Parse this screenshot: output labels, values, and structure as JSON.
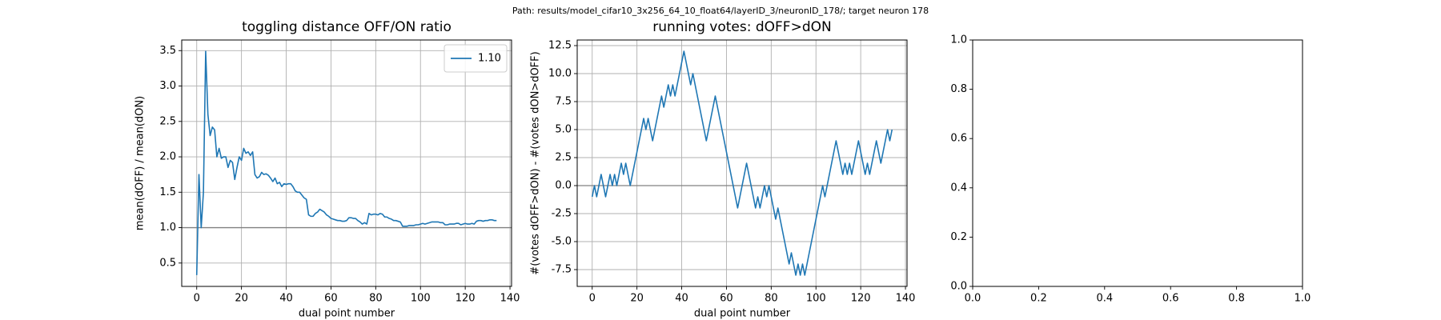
{
  "suptitle": "Path: results/model_cifar10_3x256_64_10_float64/layerID_3/neuronID_178/; target neuron 178",
  "chart_data": [
    {
      "type": "line",
      "title": "toggling distance OFF/ON ratio",
      "xlabel": "dual point number",
      "ylabel": "mean(dOFF) / mean(dON)",
      "x": [
        0,
        1,
        2,
        3,
        4,
        5,
        6,
        7,
        8,
        9,
        10,
        11,
        12,
        13,
        14,
        15,
        16,
        17,
        18,
        19,
        20,
        21,
        22,
        23,
        24,
        25,
        26,
        27,
        28,
        29,
        30,
        31,
        32,
        33,
        34,
        35,
        36,
        37,
        38,
        39,
        40,
        41,
        42,
        43,
        44,
        45,
        46,
        47,
        48,
        49,
        50,
        51,
        52,
        53,
        54,
        55,
        56,
        57,
        58,
        59,
        60,
        61,
        62,
        63,
        64,
        65,
        66,
        67,
        68,
        69,
        70,
        71,
        72,
        73,
        74,
        75,
        76,
        77,
        78,
        79,
        80,
        81,
        82,
        83,
        84,
        85,
        86,
        87,
        88,
        89,
        90,
        91,
        92,
        93,
        94,
        95,
        96,
        97,
        98,
        99,
        100,
        101,
        102,
        103,
        104,
        105,
        106,
        107,
        108,
        109,
        110,
        111,
        112,
        113,
        114,
        115,
        116,
        117,
        118,
        119,
        120,
        121,
        122,
        123,
        124,
        125,
        126,
        127,
        128,
        129,
        130,
        131,
        132,
        133,
        134
      ],
      "series": [
        {
          "name": "1.10",
          "color": "#1f77b4",
          "values": [
            0.33,
            1.75,
            1.0,
            1.5,
            3.49,
            2.6,
            2.3,
            2.42,
            2.38,
            2.0,
            2.12,
            1.98,
            2.0,
            2.0,
            1.85,
            1.95,
            1.92,
            1.68,
            1.85,
            2.0,
            1.95,
            2.12,
            2.05,
            2.07,
            2.02,
            2.07,
            1.75,
            1.7,
            1.72,
            1.78,
            1.75,
            1.76,
            1.74,
            1.7,
            1.65,
            1.7,
            1.62,
            1.64,
            1.58,
            1.62,
            1.61,
            1.62,
            1.62,
            1.58,
            1.52,
            1.5,
            1.5,
            1.46,
            1.42,
            1.4,
            1.18,
            1.16,
            1.16,
            1.2,
            1.22,
            1.26,
            1.24,
            1.22,
            1.18,
            1.16,
            1.13,
            1.12,
            1.11,
            1.1,
            1.1,
            1.09,
            1.09,
            1.1,
            1.14,
            1.14,
            1.13,
            1.13,
            1.1,
            1.08,
            1.05,
            1.07,
            1.05,
            1.2,
            1.18,
            1.19,
            1.19,
            1.18,
            1.2,
            1.19,
            1.15,
            1.15,
            1.13,
            1.12,
            1.1,
            1.1,
            1.09,
            1.08,
            1.02,
            1.02,
            1.02,
            1.03,
            1.03,
            1.03,
            1.04,
            1.04,
            1.05,
            1.06,
            1.05,
            1.06,
            1.07,
            1.08,
            1.08,
            1.08,
            1.08,
            1.07,
            1.07,
            1.04,
            1.04,
            1.05,
            1.05,
            1.05,
            1.06,
            1.06,
            1.04,
            1.05,
            1.06,
            1.05,
            1.05,
            1.06,
            1.05,
            1.09,
            1.1,
            1.1,
            1.09,
            1.1,
            1.1,
            1.11,
            1.11,
            1.1,
            1.1
          ]
        }
      ],
      "hline": 1,
      "hline_color": "#808080",
      "xlim": [
        -6.7,
        140.7
      ],
      "xticks": [
        0,
        20,
        40,
        60,
        80,
        100,
        120,
        140
      ],
      "ylim": [
        0.17,
        3.65
      ],
      "yticks": [
        0.5,
        {
          "value": 1,
          "label": "1.0"
        },
        1.5,
        {
          "value": 2,
          "label": "2.0"
        },
        2.5,
        {
          "value": 3,
          "label": "3.0"
        },
        3.5
      ],
      "grid": true,
      "legend": "upper right"
    },
    {
      "type": "line",
      "title": "running votes: dOFF>dON",
      "xlabel": "dual point number",
      "ylabel": "#(votes dOFF>dON) - #(votes dON>dOFF)",
      "x": [
        0,
        1,
        2,
        3,
        4,
        5,
        6,
        7,
        8,
        9,
        10,
        11,
        12,
        13,
        14,
        15,
        16,
        17,
        18,
        19,
        20,
        21,
        22,
        23,
        24,
        25,
        26,
        27,
        28,
        29,
        30,
        31,
        32,
        33,
        34,
        35,
        36,
        37,
        38,
        39,
        40,
        41,
        42,
        43,
        44,
        45,
        46,
        47,
        48,
        49,
        50,
        51,
        52,
        53,
        54,
        55,
        56,
        57,
        58,
        59,
        60,
        61,
        62,
        63,
        64,
        65,
        66,
        67,
        68,
        69,
        70,
        71,
        72,
        73,
        74,
        75,
        76,
        77,
        78,
        79,
        80,
        81,
        82,
        83,
        84,
        85,
        86,
        87,
        88,
        89,
        90,
        91,
        92,
        93,
        94,
        95,
        96,
        97,
        98,
        99,
        100,
        101,
        102,
        103,
        104,
        105,
        106,
        107,
        108,
        109,
        110,
        111,
        112,
        113,
        114,
        115,
        116,
        117,
        118,
        119,
        120,
        121,
        122,
        123,
        124,
        125,
        126,
        127,
        128,
        129,
        130,
        131,
        132,
        133,
        134
      ],
      "series": [
        {
          "name": null,
          "color": "#1f77b4",
          "values": [
            -1,
            0,
            -1,
            0,
            1,
            0,
            -1,
            0,
            1,
            0,
            1,
            0,
            1,
            2,
            1,
            2,
            1,
            0,
            1,
            2,
            3,
            4,
            5,
            6,
            5,
            6,
            5,
            4,
            5,
            6,
            7,
            8,
            7,
            8,
            9,
            8,
            9,
            8,
            9,
            10,
            11,
            12,
            11,
            10,
            9,
            10,
            9,
            8,
            7,
            6,
            5,
            4,
            5,
            6,
            7,
            8,
            7,
            6,
            5,
            4,
            3,
            2,
            1,
            0,
            -1,
            -2,
            -1,
            0,
            1,
            2,
            1,
            0,
            -1,
            -2,
            -1,
            -2,
            -1,
            0,
            -1,
            0,
            -1,
            -2,
            -3,
            -2,
            -3,
            -4,
            -5,
            -6,
            -7,
            -6,
            -7,
            -8,
            -7,
            -8,
            -7,
            -8,
            -7,
            -6,
            -5,
            -4,
            -3,
            -2,
            -1,
            0,
            -1,
            0,
            1,
            2,
            3,
            4,
            3,
            2,
            1,
            2,
            1,
            2,
            1,
            2,
            3,
            4,
            3,
            2,
            1,
            2,
            1,
            2,
            3,
            4,
            3,
            2,
            3,
            4,
            5,
            4,
            5
          ]
        }
      ],
      "hline": 0,
      "hline_color": "#808080",
      "xlim": [
        -6.7,
        140.7
      ],
      "xticks": [
        0,
        20,
        40,
        60,
        80,
        100,
        120,
        140
      ],
      "ylim": [
        -9,
        13
      ],
      "yticks": [
        -7.5,
        {
          "value": -5,
          "label": "-5.0"
        },
        -2.5,
        {
          "value": 0,
          "label": "0.0"
        },
        2.5,
        {
          "value": 5,
          "label": "5.0"
        },
        7.5,
        {
          "value": 10,
          "label": "10.0"
        },
        12.5
      ],
      "grid": true
    },
    {
      "type": "blank",
      "xlim": [
        0,
        1
      ],
      "xticks": [
        {
          "value": 0,
          "label": "0.0"
        },
        0.2,
        0.4,
        0.6,
        0.8,
        {
          "value": 1,
          "label": "1.0"
        }
      ],
      "ylim": [
        0,
        1
      ],
      "yticks": [
        {
          "value": 0,
          "label": "0.0"
        },
        0.2,
        0.4,
        0.6,
        0.8,
        {
          "value": 1,
          "label": "1.0"
        }
      ],
      "grid": false
    }
  ]
}
